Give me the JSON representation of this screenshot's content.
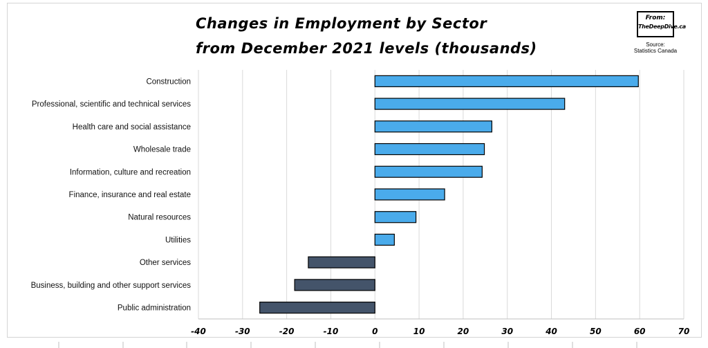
{
  "title_line1": "Changes in Employment by Sector",
  "title_line2": "from December 2021 levels (thousands)",
  "badge": {
    "line1": "From:",
    "line2": "TheDeepDive.ca"
  },
  "source": {
    "label": "Source:",
    "value": "Statistics Canada"
  },
  "colors": {
    "positive": "#4aabeb",
    "negative": "#44546a",
    "grid": "#d9d9d9",
    "outline": "#000000"
  },
  "chart_data": {
    "type": "bar",
    "orientation": "horizontal",
    "title": "Changes in Employment by Sector from December 2021 levels (thousands)",
    "categories": [
      "Construction",
      "Professional, scientific and technical services",
      "Health care and social assistance",
      "Wholesale trade",
      "Information, culture and recreation",
      "Finance, insurance and real estate",
      "Natural resources",
      "Utilities",
      "Other services",
      "Business, building and other support services",
      "Public administration"
    ],
    "values": [
      59.7,
      43.0,
      26.5,
      24.8,
      24.3,
      15.8,
      9.3,
      4.4,
      -15.1,
      -18.2,
      -26.1
    ],
    "xlim": [
      -40,
      70
    ],
    "xticks": [
      "-40",
      "-30",
      "-20",
      "-10",
      "0",
      "10",
      "20",
      "30",
      "40",
      "50",
      "60",
      "70"
    ],
    "grid": true,
    "legend": "none"
  }
}
